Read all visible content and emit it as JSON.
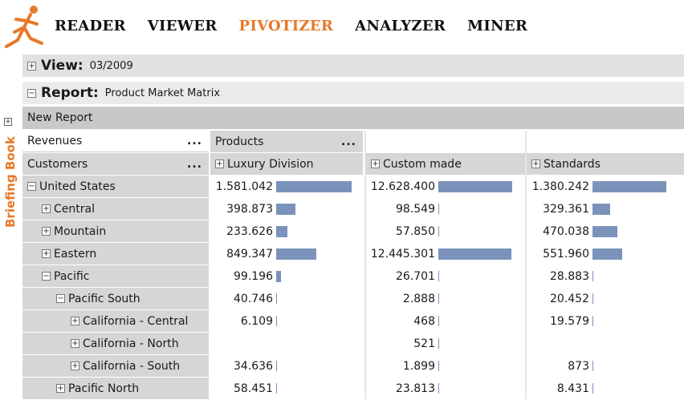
{
  "nav": {
    "items": [
      "READER",
      "VIEWER",
      "PIVOTIZER",
      "ANALYZER",
      "MINER"
    ],
    "active": "PIVOTIZER"
  },
  "side": {
    "label": "Briefing Book"
  },
  "view": {
    "key": "View:",
    "value": "03/2009"
  },
  "report": {
    "key": "Report:",
    "value": "Product Market Matrix"
  },
  "new_report": "New Report",
  "pivot": {
    "measure": "Revenues",
    "row_dim": "Customers",
    "col_dim": "Products",
    "dots": "...",
    "columns": [
      "Luxury Division",
      "Custom made",
      "Standards"
    ],
    "rows": [
      {
        "label": "United States",
        "values": [
          "1.581.042",
          "12.628.400",
          "1.380.242"
        ]
      },
      {
        "label": "Central",
        "values": [
          "398.873",
          "98.549",
          "329.361"
        ]
      },
      {
        "label": "Mountain",
        "values": [
          "233.626",
          "57.850",
          "470.038"
        ]
      },
      {
        "label": "Eastern",
        "values": [
          "849.347",
          "12.445.301",
          "551.960"
        ]
      },
      {
        "label": "Pacific",
        "values": [
          "99.196",
          "26.701",
          "28.883"
        ]
      },
      {
        "label": "Pacific South",
        "values": [
          "40.746",
          "2.888",
          "20.452"
        ]
      },
      {
        "label": "California - Central",
        "values": [
          "6.109",
          "468",
          "19.579"
        ]
      },
      {
        "label": "California - North",
        "values": [
          "",
          "521",
          ""
        ]
      },
      {
        "label": "California - South",
        "values": [
          "34.636",
          "1.899",
          "873"
        ]
      },
      {
        "label": "Pacific North",
        "values": [
          "58.451",
          "23.813",
          "8.431"
        ]
      }
    ]
  },
  "colors": {
    "accent": "#e8782a",
    "bar": "#7b93bb",
    "label_bg": "#d6d6d6"
  }
}
